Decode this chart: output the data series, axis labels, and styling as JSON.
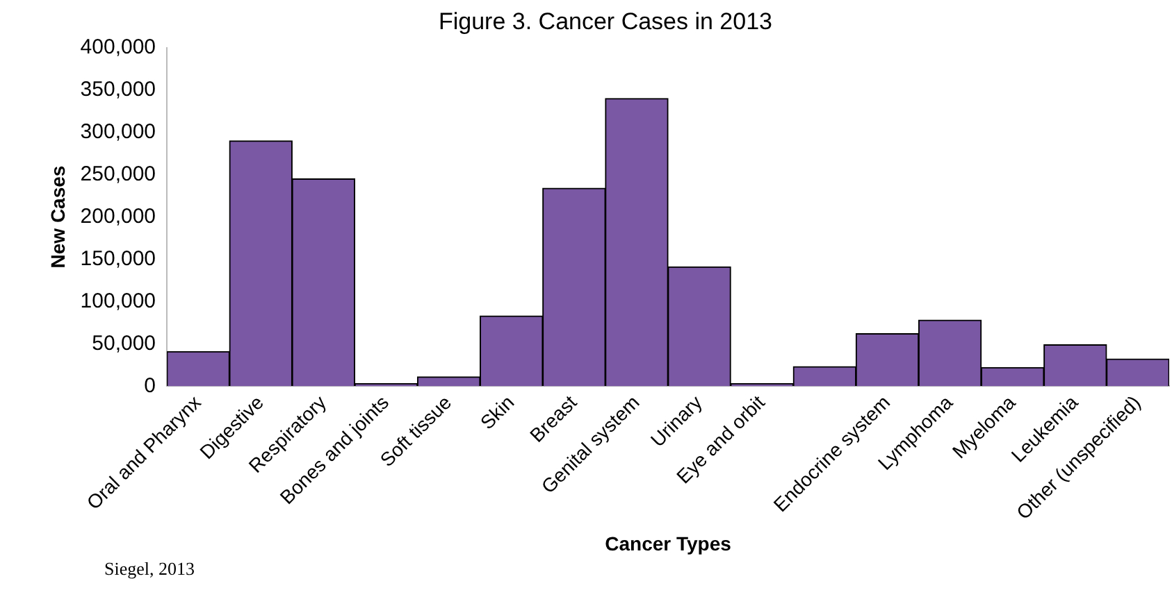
{
  "chart_data": {
    "type": "bar",
    "title": "Figure 3. Cancer Cases in 2013",
    "xlabel": "Cancer Types",
    "ylabel": "New Cases",
    "categories": [
      "Oral and Pharynx",
      "Digestive",
      "Respiratory",
      "Bones and joints",
      "Soft tissue",
      "Skin",
      "Breast",
      "Genital system",
      "Urinary",
      "Eye and orbit",
      null,
      "Endocrine system",
      "Lymphoma",
      "Myeloma",
      "Leukemia",
      "Other (unspecified)"
    ],
    "values": [
      41000,
      290000,
      245000,
      3000,
      11000,
      83000,
      234000,
      340000,
      141000,
      3000,
      23000,
      62000,
      78000,
      22000,
      49000,
      32000
    ],
    "color": "#7b58a3",
    "ylim": [
      0,
      400000
    ],
    "yticks": [
      {
        "value": 0,
        "label": "0"
      },
      {
        "value": 50000,
        "label": "50,000"
      },
      {
        "value": 100000,
        "label": "100,000"
      },
      {
        "value": 150000,
        "label": "150,000"
      },
      {
        "value": 200000,
        "label": "200,000"
      },
      {
        "value": 250000,
        "label": "250,000"
      },
      {
        "value": 300000,
        "label": "300,000"
      },
      {
        "value": 350000,
        "label": "350,000"
      },
      {
        "value": 400000,
        "label": "400,000"
      }
    ],
    "grid": false,
    "legend": false,
    "annotations": [
      "Siegel, 2013"
    ]
  }
}
